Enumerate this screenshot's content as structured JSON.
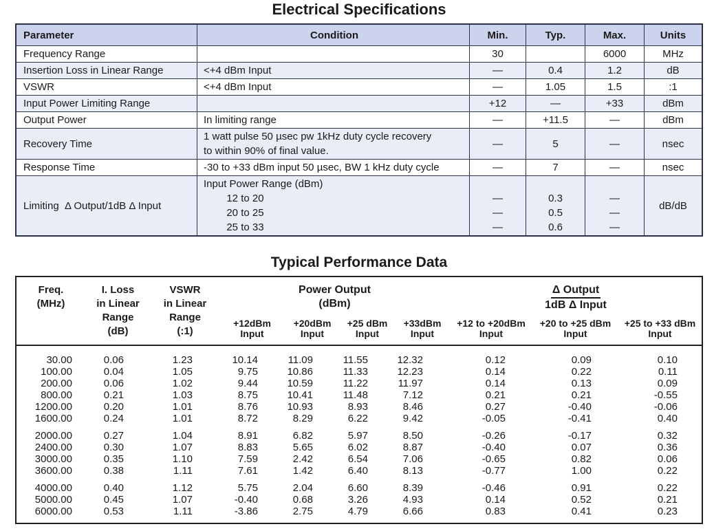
{
  "colors": {
    "table_header_bg": "#ccd3ec",
    "row_stripe_bg": "#e9edf7",
    "table1_border": "#2c3147",
    "table2_border": "#1f1f1f",
    "text": "#1a1a1a"
  },
  "electrical": {
    "title": "Electrical Specifications",
    "headers": [
      "Parameter",
      "Condition",
      "Min.",
      "Typ.",
      "Max.",
      "Units"
    ],
    "rows": [
      {
        "parameter": "Frequency Range",
        "condition": [],
        "min": [
          "30"
        ],
        "typ": [],
        "max": [
          "6000"
        ],
        "units": "MHz"
      },
      {
        "parameter": "Insertion Loss in Linear Range",
        "condition": [
          "<+4 dBm Input"
        ],
        "min": [
          "—"
        ],
        "typ": [
          "0.4"
        ],
        "max": [
          "1.2"
        ],
        "units": "dB"
      },
      {
        "parameter": "VSWR",
        "condition": [
          "<+4 dBm Input"
        ],
        "min": [
          "—"
        ],
        "typ": [
          "1.05"
        ],
        "max": [
          "1.5"
        ],
        "units": ":1"
      },
      {
        "parameter": "Input Power Limiting Range",
        "condition": [],
        "min": [
          "+12"
        ],
        "typ": [
          "—"
        ],
        "max": [
          "+33"
        ],
        "units": "dBm"
      },
      {
        "parameter": "Output Power",
        "condition": [
          "In limiting range"
        ],
        "min": [
          "—"
        ],
        "typ": [
          "+11.5"
        ],
        "max": [
          "—"
        ],
        "units": "dBm"
      },
      {
        "parameter": "Recovery Time",
        "condition": [
          "1 watt pulse 50 µsec pw 1kHz duty cycle recovery",
          "to within 90% of final value."
        ],
        "min": [
          "—"
        ],
        "typ": [
          "5"
        ],
        "max": [
          "—"
        ],
        "units": "nsec"
      },
      {
        "parameter": "Response Time",
        "condition": [
          "-30 to +33 dBm input 50 µsec, BW 1 kHz duty cycle"
        ],
        "min": [
          "—"
        ],
        "typ": [
          "7"
        ],
        "max": [
          "—"
        ],
        "units": "nsec"
      },
      {
        "parameter": "Limiting  Δ Output/1dB Δ Input",
        "condition": [
          "Input Power Range (dBm)",
          "        12 to 20",
          "        20 to 25",
          "        25 to 33"
        ],
        "min": [
          "",
          "—",
          "—",
          "—"
        ],
        "typ": [
          "",
          "0.3",
          "0.5",
          "0.6"
        ],
        "max": [
          "",
          "—",
          "—",
          "—"
        ],
        "units": "dB/dB"
      }
    ]
  },
  "performance": {
    "title": "Typical Performance Data",
    "header": {
      "freq": [
        "Freq.",
        "(MHz)"
      ],
      "iloss": [
        "I. Loss",
        "in Linear",
        "Range",
        "(dB)"
      ],
      "vswr": [
        "VSWR",
        "in Linear",
        "Range",
        "(:1)"
      ],
      "power_group": [
        "Power Output",
        "(dBm)"
      ],
      "power_sub": [
        [
          "+12dBm",
          "Input"
        ],
        [
          "+20dBm",
          "Input"
        ],
        [
          "+25 dBm",
          "Input"
        ],
        [
          "+33dBm",
          "Input"
        ]
      ],
      "delta_group": [
        "Δ Output",
        "1dB Δ Input"
      ],
      "delta_sub": [
        [
          "+12 to +20dBm",
          "Input"
        ],
        [
          "+20 to +25 dBm",
          "Input"
        ],
        [
          "+25 to +33 dBm",
          "Input"
        ]
      ]
    },
    "groups": [
      [
        [
          "30.00",
          "0.06",
          "1.23",
          "10.14",
          "11.09",
          "11.55",
          "12.32",
          "0.12",
          "0.09",
          "0.10"
        ],
        [
          "100.00",
          "0.04",
          "1.05",
          "9.75",
          "10.86",
          "11.33",
          "12.23",
          "0.14",
          "0.22",
          "0.11"
        ],
        [
          "200.00",
          "0.06",
          "1.02",
          "9.44",
          "10.59",
          "11.22",
          "11.97",
          "0.14",
          "0.13",
          "0.09"
        ],
        [
          "800.00",
          "0.21",
          "1.03",
          "8.75",
          "10.41",
          "11.48",
          "7.12",
          "0.21",
          "0.21",
          "-0.55"
        ],
        [
          "1200.00",
          "0.20",
          "1.01",
          "8.76",
          "10.93",
          "8.93",
          "8.46",
          "0.27",
          "-0.40",
          "-0.06"
        ],
        [
          "1600.00",
          "0.24",
          "1.01",
          "8.72",
          "8.29",
          "6.22",
          "9.42",
          "-0.05",
          "-0.41",
          "0.40"
        ]
      ],
      [
        [
          "2000.00",
          "0.27",
          "1.04",
          "8.91",
          "6.82",
          "5.97",
          "8.50",
          "-0.26",
          "-0.17",
          "0.32"
        ],
        [
          "2400.00",
          "0.30",
          "1.07",
          "8.83",
          "5.65",
          "6.02",
          "8.87",
          "-0.40",
          "0.07",
          "0.36"
        ],
        [
          "3000.00",
          "0.35",
          "1.10",
          "7.59",
          "2.42",
          "6.54",
          "7.06",
          "-0.65",
          "0.82",
          "0.06"
        ],
        [
          "3600.00",
          "0.38",
          "1.11",
          "7.61",
          "1.42",
          "6.40",
          "8.13",
          "-0.77",
          "1.00",
          "0.22"
        ]
      ],
      [
        [
          "4000.00",
          "0.40",
          "1.12",
          "5.75",
          "2.04",
          "6.60",
          "8.39",
          "-0.46",
          "0.91",
          "0.22"
        ],
        [
          "5000.00",
          "0.45",
          "1.07",
          "-0.40",
          "0.68",
          "3.26",
          "4.93",
          "0.14",
          "0.52",
          "0.21"
        ],
        [
          "6000.00",
          "0.53",
          "1.11",
          "-3.86",
          "2.75",
          "4.79",
          "6.66",
          "0.83",
          "0.41",
          "0.23"
        ]
      ]
    ]
  }
}
